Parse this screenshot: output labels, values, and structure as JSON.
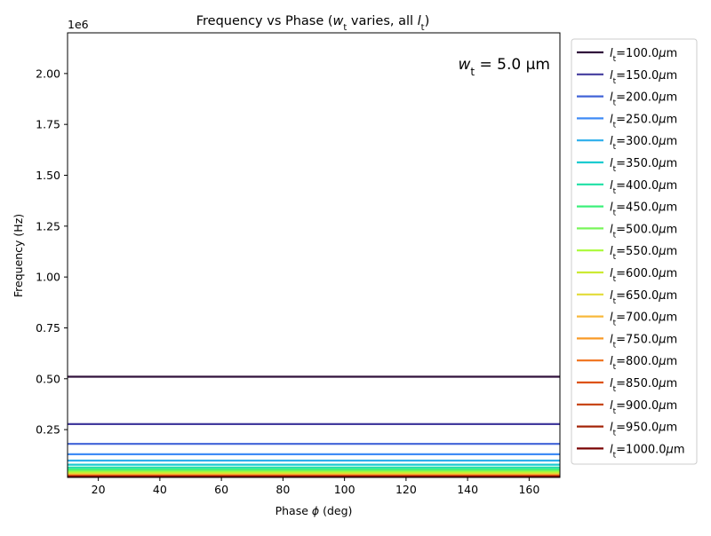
{
  "chart_data": {
    "type": "line",
    "title_parts": [
      {
        "text": "Frequency vs Phase (",
        "italic": false
      },
      {
        "text": "w",
        "italic": true
      },
      {
        "text": "t",
        "italic": false,
        "sub": true
      },
      {
        "text": " varies, all ",
        "italic": false
      },
      {
        "text": "l",
        "italic": true
      },
      {
        "text": "t",
        "italic": false,
        "sub": true
      },
      {
        "text": ")",
        "italic": false
      }
    ],
    "xlabel_parts": [
      {
        "text": "Phase ",
        "italic": false
      },
      {
        "text": "ϕ",
        "italic": true
      },
      {
        "text": " (deg)",
        "italic": false
      }
    ],
    "ylabel": "Frequency (Hz)",
    "y_offset_label": "1e6",
    "xlim": [
      10,
      170
    ],
    "ylim": [
      15000,
      2200000
    ],
    "x_ticks": [
      20,
      40,
      60,
      80,
      100,
      120,
      140,
      160
    ],
    "x_tick_labels": [
      "20",
      "40",
      "60",
      "80",
      "100",
      "120",
      "140",
      "160"
    ],
    "y_ticks": [
      250000,
      500000,
      750000,
      1000000,
      1250000,
      1500000,
      1750000,
      2000000
    ],
    "y_tick_labels": [
      "0.25",
      "0.50",
      "0.75",
      "1.00",
      "1.25",
      "1.50",
      "1.75",
      "2.00"
    ],
    "annotation_parts": [
      {
        "text": "w",
        "italic": true
      },
      {
        "text": "t",
        "italic": false,
        "sub": true
      },
      {
        "text": " = 5.0 µm",
        "italic": false
      }
    ],
    "legend_position": "outside-right",
    "grid": false,
    "x": [
      10,
      170
    ],
    "series": [
      {
        "name": "100.0",
        "color": "#30123b",
        "values": [
          510000,
          510000
        ]
      },
      {
        "name": "150.0",
        "color": "#433b9e",
        "values": [
          277000,
          277000
        ]
      },
      {
        "name": "200.0",
        "color": "#4163d7",
        "values": [
          180000,
          180000
        ]
      },
      {
        "name": "250.0",
        "color": "#3f8bf6",
        "values": [
          129000,
          129000
        ]
      },
      {
        "name": "300.0",
        "color": "#2baeeb",
        "values": [
          98000,
          98000
        ]
      },
      {
        "name": "350.0",
        "color": "#1ccbd0",
        "values": [
          78000,
          78000
        ]
      },
      {
        "name": "400.0",
        "color": "#1ee0a4",
        "values": [
          64000,
          64000
        ]
      },
      {
        "name": "450.0",
        "color": "#3cf07a",
        "values": [
          54000,
          54000
        ]
      },
      {
        "name": "500.0",
        "color": "#79f65a",
        "values": [
          46000,
          46000
        ]
      },
      {
        "name": "550.0",
        "color": "#aafa37",
        "values": [
          40000,
          40000
        ]
      },
      {
        "name": "600.0",
        "color": "#ccea33",
        "values": [
          35000,
          35000
        ]
      },
      {
        "name": "650.0",
        "color": "#e2dc38",
        "values": [
          31000,
          31000
        ]
      },
      {
        "name": "700.0",
        "color": "#f8b93b",
        "values": [
          28000,
          28000
        ]
      },
      {
        "name": "750.0",
        "color": "#f99a27",
        "values": [
          25500,
          25500
        ]
      },
      {
        "name": "800.0",
        "color": "#f0711a",
        "values": [
          23500,
          23500
        ]
      },
      {
        "name": "850.0",
        "color": "#dd520c",
        "values": [
          21500,
          21500
        ]
      },
      {
        "name": "900.0",
        "color": "#c53d09",
        "values": [
          20000,
          20000
        ]
      },
      {
        "name": "950.0",
        "color": "#a42509",
        "values": [
          18500,
          18500
        ]
      },
      {
        "name": "1000.0",
        "color": "#7a0403",
        "values": [
          17300,
          17300
        ]
      }
    ],
    "legend_label_prefix_italic": "l",
    "legend_label_prefix_sub": "t",
    "legend_label_suffix": "μm"
  }
}
